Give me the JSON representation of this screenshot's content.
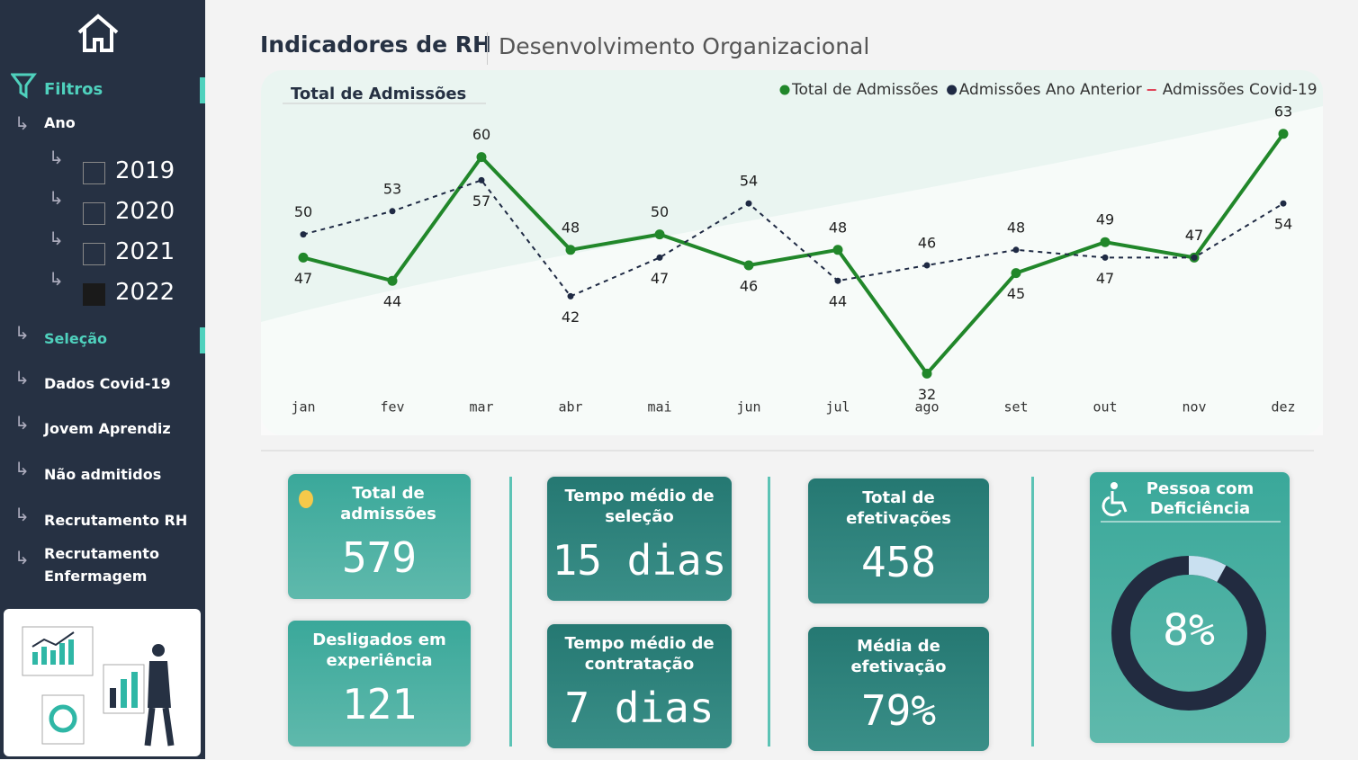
{
  "header": {
    "title": "Indicadores de RH",
    "subtitle": "Desenvolvimento Organizacional"
  },
  "sidebar": {
    "filters_label": "Filtros",
    "year_label": "Ano",
    "years": [
      {
        "label": "2019",
        "checked": false
      },
      {
        "label": "2020",
        "checked": false
      },
      {
        "label": "2021",
        "checked": false
      },
      {
        "label": "2022",
        "checked": true
      }
    ],
    "items": [
      "Seleção",
      "Dados Covid-19",
      "Jovem Aprendiz",
      "Não admitidos",
      "Recrutamento RH",
      "Recrutamento Enfermagem"
    ]
  },
  "chart_data": {
    "type": "line",
    "title": "Total de Admissões",
    "categories": [
      "jan",
      "fev",
      "mar",
      "abr",
      "mai",
      "jun",
      "jul",
      "ago",
      "set",
      "out",
      "nov",
      "dez"
    ],
    "series": [
      {
        "name": "Total de Admissões",
        "color": "#21872a",
        "values": [
          47,
          44,
          60,
          48,
          50,
          46,
          48,
          32,
          45,
          49,
          47,
          63
        ]
      },
      {
        "name": "Admissões Ano Anterior",
        "color": "#1f2a44",
        "values": [
          50,
          53,
          57,
          42,
          47,
          54,
          44,
          46,
          48,
          47,
          47,
          54
        ]
      },
      {
        "name": "Admissões Covid-19",
        "color": "#e0455a",
        "values": [
          null,
          null,
          null,
          null,
          null,
          null,
          null,
          null,
          null,
          null,
          null,
          null
        ]
      }
    ],
    "ylim": [
      30,
      65
    ]
  },
  "kpis": [
    {
      "title": "Total de admissões",
      "value": "579"
    },
    {
      "title": "Tempo médio de seleção",
      "value": "15 dias"
    },
    {
      "title": "Total de efetivações",
      "value": "458"
    },
    {
      "title": "Desligados em experiência",
      "value": "121"
    },
    {
      "title": "Tempo médio de contratação",
      "value": "7 dias"
    },
    {
      "title": "Média de efetivação",
      "value": "79%"
    }
  ],
  "donut": {
    "title": "Pessoa com Deficiência",
    "value": 8,
    "value_label": "8%"
  }
}
